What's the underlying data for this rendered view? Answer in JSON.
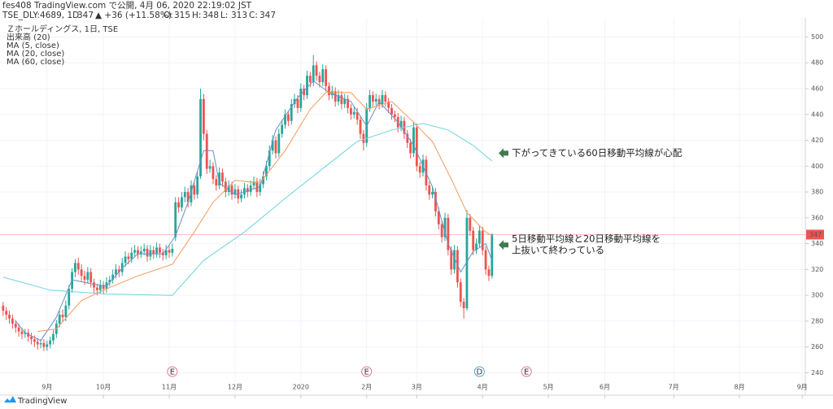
{
  "header": {
    "publisher": "fes408 TradingView.com で公開, 4月 06, 2020 22:19:02 JST",
    "ticker": "TSE_DLY:4689, 1D",
    "price": 347,
    "change": "▲ +36 (+11.58%)",
    "ohlc": [
      {
        "label": "O:",
        "value": 315
      },
      {
        "label": "H:",
        "value": 348
      },
      {
        "label": "L:",
        "value": 313
      },
      {
        "label": "C:",
        "value": 347
      }
    ]
  },
  "legend": [
    "Ｚホールディングス, 1日, TSE",
    "出来高 (20)",
    "MA (5, close)",
    "MA (20, close)",
    "MA (60, close)"
  ],
  "footer": {
    "brand": "TradingView"
  },
  "chart_data": {
    "type": "candlestick",
    "up_color": "#26a69a",
    "down_color": "#ef5350",
    "xlim": [
      -1,
      256
    ],
    "ylim": [
      234,
      511
    ],
    "xticks": [
      {
        "value": 14,
        "label": "9月"
      },
      {
        "value": 32,
        "label": "10月"
      },
      {
        "value": 53,
        "label": "11月"
      },
      {
        "value": 74,
        "label": "12月"
      },
      {
        "value": 95,
        "label": "2020"
      },
      {
        "value": 116,
        "label": "2月"
      },
      {
        "value": 132,
        "label": "3月"
      },
      {
        "value": 153,
        "label": "4月"
      },
      {
        "value": 174,
        "label": "5月"
      },
      {
        "value": 192,
        "label": "6月"
      },
      {
        "value": 214,
        "label": "7月"
      },
      {
        "value": 235,
        "label": "8月"
      },
      {
        "value": 255,
        "label": "9月"
      }
    ],
    "yticks": [
      240,
      260,
      280,
      300,
      320,
      340,
      360,
      380,
      400,
      420,
      440,
      460,
      480,
      500
    ],
    "grid": true,
    "last_price": 347,
    "last_price_color": "#ef5350",
    "candles": [
      [
        292,
        295,
        284,
        288
      ],
      [
        288,
        291,
        281,
        285
      ],
      [
        285,
        288,
        278,
        282
      ],
      [
        282,
        285,
        274,
        278
      ],
      [
        278,
        281,
        271,
        275
      ],
      [
        275,
        278,
        268,
        272
      ],
      [
        272,
        275,
        266,
        270
      ],
      [
        270,
        274,
        267,
        271
      ],
      [
        271,
        274,
        264,
        268
      ],
      [
        268,
        271,
        262,
        266
      ],
      [
        266,
        269,
        260,
        264
      ],
      [
        264,
        267,
        258,
        262
      ],
      [
        262,
        266,
        259,
        263
      ],
      [
        263,
        266,
        257,
        260
      ],
      [
        260,
        265,
        257,
        262
      ],
      [
        262,
        268,
        259,
        265
      ],
      [
        265,
        273,
        262,
        270
      ],
      [
        270,
        281,
        267,
        278
      ],
      [
        278,
        288,
        275,
        285
      ],
      [
        285,
        289,
        280,
        283
      ],
      [
        283,
        296,
        280,
        292
      ],
      [
        292,
        308,
        289,
        305
      ],
      [
        305,
        321,
        302,
        318
      ],
      [
        318,
        328,
        314,
        325
      ],
      [
        325,
        329,
        316,
        320
      ],
      [
        320,
        324,
        311,
        315
      ],
      [
        315,
        319,
        308,
        312
      ],
      [
        312,
        322,
        309,
        318
      ],
      [
        318,
        321,
        306,
        310
      ],
      [
        310,
        313,
        302,
        306
      ],
      [
        306,
        309,
        300,
        304
      ],
      [
        304,
        312,
        301,
        308
      ],
      [
        308,
        311,
        301,
        305
      ],
      [
        305,
        314,
        302,
        310
      ],
      [
        310,
        315,
        307,
        312
      ],
      [
        312,
        320,
        309,
        316
      ],
      [
        316,
        324,
        313,
        320
      ],
      [
        320,
        323,
        314,
        318
      ],
      [
        318,
        329,
        315,
        325
      ],
      [
        325,
        334,
        322,
        330
      ],
      [
        330,
        333,
        324,
        328
      ],
      [
        328,
        337,
        325,
        333
      ],
      [
        333,
        339,
        330,
        335
      ],
      [
        335,
        338,
        328,
        332
      ],
      [
        332,
        338,
        329,
        334
      ],
      [
        334,
        340,
        331,
        336
      ],
      [
        336,
        339,
        326,
        330
      ],
      [
        330,
        339,
        327,
        335
      ],
      [
        335,
        338,
        328,
        332
      ],
      [
        332,
        341,
        329,
        337
      ],
      [
        337,
        340,
        329,
        333
      ],
      [
        333,
        336,
        327,
        331
      ],
      [
        331,
        339,
        328,
        335
      ],
      [
        335,
        338,
        329,
        333
      ],
      [
        333,
        340,
        330,
        336
      ],
      [
        345,
        376,
        342,
        372
      ],
      [
        372,
        376,
        364,
        368
      ],
      [
        368,
        380,
        365,
        376
      ],
      [
        376,
        384,
        372,
        380
      ],
      [
        380,
        383,
        368,
        372
      ],
      [
        372,
        389,
        369,
        385
      ],
      [
        385,
        388,
        374,
        378
      ],
      [
        378,
        396,
        375,
        392
      ],
      [
        392,
        460,
        390,
        452
      ],
      [
        452,
        456,
        420,
        425
      ],
      [
        425,
        428,
        394,
        398
      ],
      [
        398,
        405,
        395,
        400
      ],
      [
        400,
        403,
        386,
        390
      ],
      [
        390,
        393,
        381,
        385
      ],
      [
        385,
        399,
        382,
        395
      ],
      [
        395,
        398,
        384,
        388
      ],
      [
        388,
        391,
        376,
        380
      ],
      [
        380,
        389,
        377,
        385
      ],
      [
        385,
        388,
        374,
        378
      ],
      [
        378,
        386,
        375,
        382
      ],
      [
        382,
        385,
        371,
        375
      ],
      [
        375,
        382,
        372,
        378
      ],
      [
        378,
        387,
        375,
        383
      ],
      [
        383,
        386,
        376,
        380
      ],
      [
        380,
        389,
        377,
        385
      ],
      [
        385,
        392,
        382,
        388
      ],
      [
        388,
        391,
        376,
        380
      ],
      [
        380,
        390,
        377,
        386
      ],
      [
        386,
        396,
        383,
        392
      ],
      [
        392,
        404,
        389,
        400
      ],
      [
        400,
        416,
        397,
        412
      ],
      [
        412,
        424,
        409,
        420
      ],
      [
        420,
        423,
        406,
        410
      ],
      [
        410,
        429,
        407,
        425
      ],
      [
        425,
        436,
        422,
        432
      ],
      [
        432,
        444,
        429,
        440
      ],
      [
        440,
        443,
        431,
        435
      ],
      [
        435,
        452,
        432,
        448
      ],
      [
        448,
        456,
        445,
        452
      ],
      [
        452,
        455,
        441,
        445
      ],
      [
        445,
        464,
        442,
        460
      ],
      [
        460,
        463,
        451,
        455
      ],
      [
        455,
        474,
        452,
        470
      ],
      [
        470,
        473,
        461,
        465
      ],
      [
        465,
        486,
        462,
        478
      ],
      [
        478,
        481,
        466,
        470
      ],
      [
        470,
        473,
        461,
        465
      ],
      [
        465,
        479,
        462,
        475
      ],
      [
        475,
        478,
        458,
        462
      ],
      [
        462,
        465,
        451,
        455
      ],
      [
        455,
        462,
        452,
        458
      ],
      [
        458,
        461,
        446,
        450
      ],
      [
        450,
        459,
        447,
        455
      ],
      [
        455,
        458,
        444,
        448
      ],
      [
        448,
        456,
        445,
        452
      ],
      [
        452,
        455,
        441,
        445
      ],
      [
        445,
        448,
        436,
        440
      ],
      [
        440,
        446,
        437,
        442
      ],
      [
        442,
        445,
        432,
        436
      ],
      [
        436,
        439,
        421,
        425
      ],
      [
        425,
        428,
        412,
        418
      ],
      [
        418,
        449,
        415,
        445
      ],
      [
        445,
        459,
        442,
        455
      ],
      [
        455,
        458,
        446,
        450
      ],
      [
        450,
        456,
        447,
        452
      ],
      [
        452,
        455,
        444,
        448
      ],
      [
        448,
        459,
        445,
        455
      ],
      [
        455,
        458,
        446,
        450
      ],
      [
        450,
        453,
        441,
        445
      ],
      [
        445,
        448,
        436,
        440
      ],
      [
        440,
        443,
        434,
        438
      ],
      [
        438,
        441,
        426,
        430
      ],
      [
        430,
        439,
        427,
        435
      ],
      [
        435,
        438,
        421,
        425
      ],
      [
        425,
        428,
        414,
        418
      ],
      [
        418,
        421,
        406,
        410
      ],
      [
        410,
        434,
        407,
        430
      ],
      [
        430,
        433,
        396,
        400
      ],
      [
        400,
        403,
        391,
        395
      ],
      [
        395,
        409,
        392,
        405
      ],
      [
        405,
        408,
        381,
        385
      ],
      [
        385,
        388,
        374,
        378
      ],
      [
        378,
        384,
        375,
        380
      ],
      [
        380,
        383,
        361,
        365
      ],
      [
        365,
        368,
        351,
        355
      ],
      [
        355,
        358,
        341,
        345
      ],
      [
        345,
        364,
        342,
        360
      ],
      [
        360,
        363,
        331,
        335
      ],
      [
        335,
        338,
        316,
        320
      ],
      [
        320,
        339,
        317,
        335
      ],
      [
        335,
        338,
        306,
        310
      ],
      [
        310,
        313,
        291,
        295
      ],
      [
        295,
        298,
        282,
        290
      ],
      [
        290,
        366,
        288,
        360
      ],
      [
        360,
        363,
        346,
        350
      ],
      [
        350,
        353,
        331,
        335
      ],
      [
        335,
        344,
        332,
        340
      ],
      [
        340,
        354,
        337,
        350
      ],
      [
        350,
        353,
        331,
        335
      ],
      [
        335,
        338,
        316,
        320
      ],
      [
        320,
        323,
        311,
        315
      ],
      [
        315,
        348,
        313,
        347
      ]
    ],
    "series": [
      {
        "name": "MA (5, close)",
        "color": "#6a8fc8",
        "x": [
          4,
          7,
          12,
          17,
          22,
          28,
          33,
          38,
          43,
          51,
          55,
          59,
          64,
          67,
          69,
          74,
          82,
          87,
          94,
          99,
          104,
          111,
          116,
          120,
          126,
          131,
          137,
          142,
          146,
          150,
          154,
          156
        ],
        "values": [
          280,
          271,
          265,
          283,
          312,
          309,
          307,
          321,
          332,
          332,
          346,
          372,
          412,
          412,
          387,
          378,
          384,
          428,
          453,
          466,
          457,
          450,
          431,
          450,
          434,
          416,
          384,
          340,
          318,
          334,
          340,
          327
        ]
      },
      {
        "name": "MA (20, close)",
        "color": "#f59a5b",
        "x": [
          11,
          17,
          25,
          33,
          43,
          54,
          61,
          67,
          74,
          82,
          90,
          98,
          103,
          111,
          116,
          124,
          131,
          137,
          143,
          148,
          154,
          156
        ],
        "values": [
          272,
          274,
          296,
          305,
          315,
          324,
          349,
          372,
          389,
          387,
          412,
          444,
          457,
          457,
          444,
          450,
          434,
          419,
          390,
          364,
          349,
          346
        ]
      },
      {
        "name": "MA (60, close)",
        "color": "#6fd3e0",
        "x": [
          0,
          15,
          33,
          54,
          64,
          77,
          90,
          103,
          113,
          124,
          134,
          142,
          150,
          156
        ],
        "values": [
          314,
          304,
          301,
          300,
          327,
          349,
          375,
          400,
          419,
          428,
          433,
          428,
          416,
          404
        ]
      }
    ],
    "events": [
      {
        "x": 54,
        "label": "E",
        "color": "#e57399"
      },
      {
        "x": 116,
        "label": "E",
        "color": "#e57399"
      },
      {
        "x": 152,
        "label": "D",
        "color": "#4aa3df"
      },
      {
        "x": 167,
        "label": "E",
        "color": "#e57399"
      }
    ],
    "annotations": [
      {
        "y": 410,
        "lines": [
          "下がってきている60日移動平均線が心配"
        ]
      },
      {
        "y": 339,
        "lines": [
          "5日移動平均線と20日移動平均線を",
          "上抜いて終わっている"
        ]
      }
    ]
  }
}
